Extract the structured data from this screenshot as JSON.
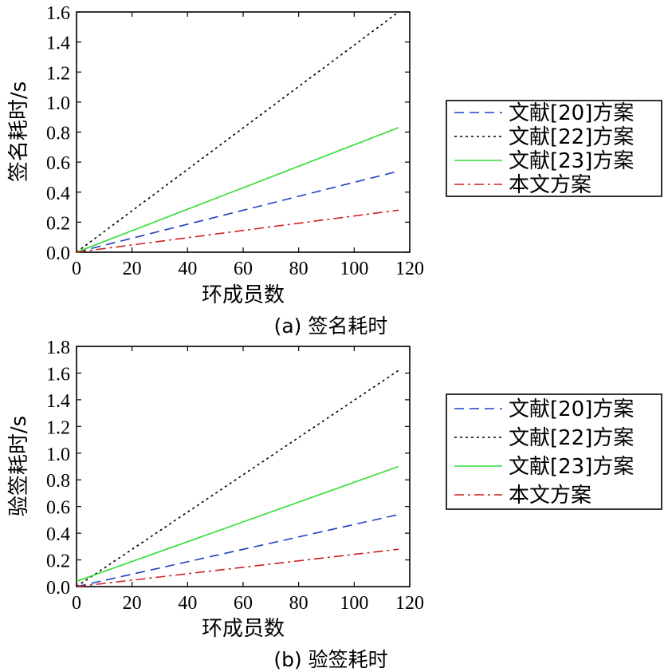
{
  "chart_data": [
    {
      "type": "line",
      "caption": "(a) 签名耗时",
      "xlabel": "环成员数",
      "ylabel": "签名耗时/s",
      "xlim": [
        0,
        120
      ],
      "ylim": [
        0,
        1.6
      ],
      "xticks": [
        "0",
        "20",
        "40",
        "60",
        "80",
        "100",
        "120"
      ],
      "yticks": [
        "0.0",
        "0.2",
        "0.4",
        "0.6",
        "0.8",
        "1.0",
        "1.2",
        "1.4",
        "1.6"
      ],
      "grid": false,
      "legend_position": "right",
      "series": [
        {
          "name": "文献[20]方案",
          "color": "#1f3fbf",
          "dash": "dashed",
          "x": [
            0,
            116
          ],
          "y": [
            0.0,
            0.54
          ]
        },
        {
          "name": "文献[22]方案",
          "color": "#000000",
          "dash": "dotted",
          "x": [
            0,
            116
          ],
          "y": [
            0.0,
            1.6
          ]
        },
        {
          "name": "文献[23]方案",
          "color": "#33dd33",
          "dash": "solid",
          "x": [
            0,
            116
          ],
          "y": [
            0.0,
            0.83
          ]
        },
        {
          "name": "本文方案",
          "color": "#cc2222",
          "dash": "dashdot",
          "x": [
            0,
            116
          ],
          "y": [
            0.0,
            0.28
          ]
        }
      ]
    },
    {
      "type": "line",
      "caption": "(b) 验签耗时",
      "xlabel": "环成员数",
      "ylabel": "验签耗时/s",
      "xlim": [
        0,
        120
      ],
      "ylim": [
        0,
        1.8
      ],
      "xticks": [
        "0",
        "20",
        "40",
        "60",
        "80",
        "100",
        "120"
      ],
      "yticks": [
        "0.0",
        "0.2",
        "0.4",
        "0.6",
        "0.8",
        "1.0",
        "1.2",
        "1.4",
        "1.6",
        "1.8"
      ],
      "grid": false,
      "legend_position": "right",
      "series": [
        {
          "name": "文献[20]方案",
          "color": "#1f3fbf",
          "dash": "dashed",
          "x": [
            0,
            116
          ],
          "y": [
            0.0,
            0.54
          ]
        },
        {
          "name": "文献[22]方案",
          "color": "#000000",
          "dash": "dotted",
          "x": [
            0,
            116
          ],
          "y": [
            0.0,
            1.62
          ]
        },
        {
          "name": "文献[23]方案",
          "color": "#33dd33",
          "dash": "solid",
          "x": [
            0,
            116
          ],
          "y": [
            0.04,
            0.9
          ]
        },
        {
          "name": "本文方案",
          "color": "#cc2222",
          "dash": "dashdot",
          "x": [
            0,
            116
          ],
          "y": [
            0.0,
            0.28
          ]
        }
      ]
    }
  ]
}
